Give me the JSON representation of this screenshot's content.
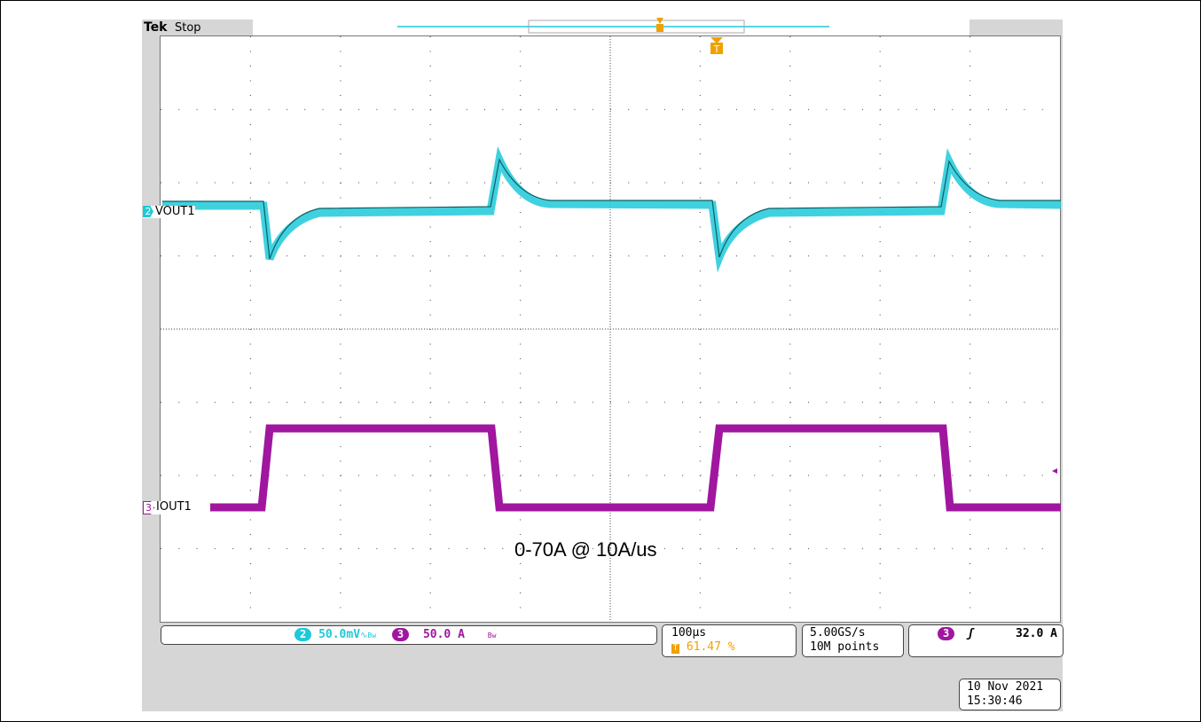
{
  "header": {
    "brand": "Tek",
    "state": "Stop"
  },
  "channels": {
    "ch2": {
      "number": "2",
      "label": "VOUT1",
      "scale": "50.0mV",
      "coupling_icon": "∿",
      "bw_icon": "Bw",
      "color": "#1ec9d9"
    },
    "ch3": {
      "number": "3",
      "label": "IOUT1",
      "scale": "50.0 A",
      "bw_icon": "Bw",
      "color": "#a0169f"
    }
  },
  "annotation": "0-70A @ 10A/us",
  "timebase": {
    "scale": "100µs",
    "trigger_pos": "61.47 %",
    "trigger_marker": "T"
  },
  "acquisition": {
    "rate": "5.00GS/s",
    "points": "10M points"
  },
  "trigger": {
    "source": "3",
    "slope_icon": "rising-edge-icon",
    "slope": "ʃ",
    "level": "32.0 A"
  },
  "datetime": {
    "date": "10 Nov 2021",
    "time": "15:30:46"
  }
}
